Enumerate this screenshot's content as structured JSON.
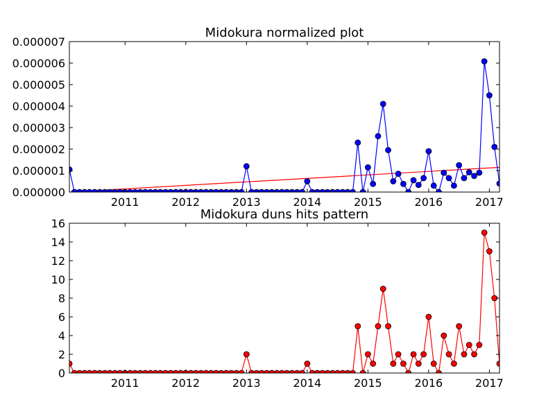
{
  "chart_data": [
    {
      "type": "line",
      "title": "Midokura normalized plot",
      "xlabel": "",
      "ylabel": "",
      "grid": false,
      "xlim": [
        "2010-02-01",
        "2017-03-01"
      ],
      "ylim": [
        0,
        7e-06
      ],
      "x_tick_labels": [
        "2011",
        "2012",
        "2013",
        "2014",
        "2015",
        "2016",
        "2017"
      ],
      "y_tick_labels": [
        "0.000000",
        "0.000001",
        "0.000002",
        "0.000003",
        "0.000004",
        "0.000005",
        "0.000006",
        "0.000007"
      ],
      "x": [
        "2010-02",
        "2010-03",
        "2010-04",
        "2010-05",
        "2010-06",
        "2010-07",
        "2010-08",
        "2010-09",
        "2010-10",
        "2010-11",
        "2010-12",
        "2011-01",
        "2011-02",
        "2011-03",
        "2011-04",
        "2011-05",
        "2011-06",
        "2011-07",
        "2011-08",
        "2011-09",
        "2011-10",
        "2011-11",
        "2011-12",
        "2012-01",
        "2012-02",
        "2012-03",
        "2012-04",
        "2012-05",
        "2012-06",
        "2012-07",
        "2012-08",
        "2012-09",
        "2012-10",
        "2012-11",
        "2012-12",
        "2013-01",
        "2013-02",
        "2013-03",
        "2013-04",
        "2013-05",
        "2013-06",
        "2013-07",
        "2013-08",
        "2013-09",
        "2013-10",
        "2013-11",
        "2013-12",
        "2014-01",
        "2014-02",
        "2014-03",
        "2014-04",
        "2014-05",
        "2014-06",
        "2014-07",
        "2014-08",
        "2014-09",
        "2014-10",
        "2014-11",
        "2014-12",
        "2015-01",
        "2015-02",
        "2015-03",
        "2015-04",
        "2015-05",
        "2015-06",
        "2015-07",
        "2015-08",
        "2015-09",
        "2015-10",
        "2015-11",
        "2015-12",
        "2016-01",
        "2016-02",
        "2016-03",
        "2016-04",
        "2016-05",
        "2016-06",
        "2016-07",
        "2016-08",
        "2016-09",
        "2016-10",
        "2016-11",
        "2016-12",
        "2017-01",
        "2017-02",
        "2017-03"
      ],
      "series": [
        {
          "color": "#0000ff",
          "marker": "circle",
          "values": [
            1.05e-06,
            0,
            0,
            0,
            0,
            0,
            0,
            0,
            0,
            0,
            0,
            0,
            0,
            0,
            0,
            0,
            0,
            0,
            0,
            0,
            0,
            0,
            0,
            0,
            0,
            0,
            0,
            0,
            0,
            0,
            0,
            0,
            0,
            0,
            0,
            1.2e-06,
            0,
            0,
            0,
            0,
            0,
            0,
            0,
            0,
            0,
            0,
            0,
            5e-07,
            0,
            0,
            0,
            0,
            0,
            0,
            0,
            0,
            0,
            2.3e-06,
            0,
            1.15e-06,
            3.8e-07,
            2.6e-06,
            4.1e-06,
            1.95e-06,
            5e-07,
            8.5e-07,
            3.8e-07,
            0,
            5.5e-07,
            3.3e-07,
            6.5e-07,
            1.9e-06,
            3e-07,
            0,
            9e-07,
            6.5e-07,
            3e-07,
            1.25e-06,
            6.5e-07,
            9.2e-07,
            7.5e-07,
            9e-07,
            6.08e-06,
            4.5e-06,
            2.1e-06,
            4e-07
          ]
        },
        {
          "color": "#ff0000",
          "marker": "none",
          "kind": "trend-line",
          "x": [
            "2010-02",
            "2017-03"
          ],
          "values": [
            0,
            1.15e-06
          ]
        }
      ]
    },
    {
      "type": "line",
      "title": "Midokura duns hits pattern",
      "xlabel": "",
      "ylabel": "",
      "grid": false,
      "xlim": [
        "2010-02-01",
        "2017-03-01"
      ],
      "ylim": [
        0,
        16
      ],
      "x_tick_labels": [
        "2011",
        "2012",
        "2013",
        "2014",
        "2015",
        "2016",
        "2017"
      ],
      "y_tick_labels": [
        "0",
        "2",
        "4",
        "6",
        "8",
        "10",
        "12",
        "14",
        "16"
      ],
      "series": [
        {
          "color": "#ff0000",
          "marker": "circle",
          "values": [
            1,
            0,
            0,
            0,
            0,
            0,
            0,
            0,
            0,
            0,
            0,
            0,
            0,
            0,
            0,
            0,
            0,
            0,
            0,
            0,
            0,
            0,
            0,
            0,
            0,
            0,
            0,
            0,
            0,
            0,
            0,
            0,
            0,
            0,
            0,
            2,
            0,
            0,
            0,
            0,
            0,
            0,
            0,
            0,
            0,
            0,
            0,
            1,
            0,
            0,
            0,
            0,
            0,
            0,
            0,
            0,
            0,
            5,
            0,
            2,
            1,
            5,
            9,
            5,
            1,
            2,
            1,
            0,
            2,
            1,
            2,
            6,
            1,
            0,
            4,
            2,
            1,
            5,
            2,
            3,
            2,
            3,
            15,
            13,
            8,
            1
          ]
        }
      ]
    }
  ]
}
